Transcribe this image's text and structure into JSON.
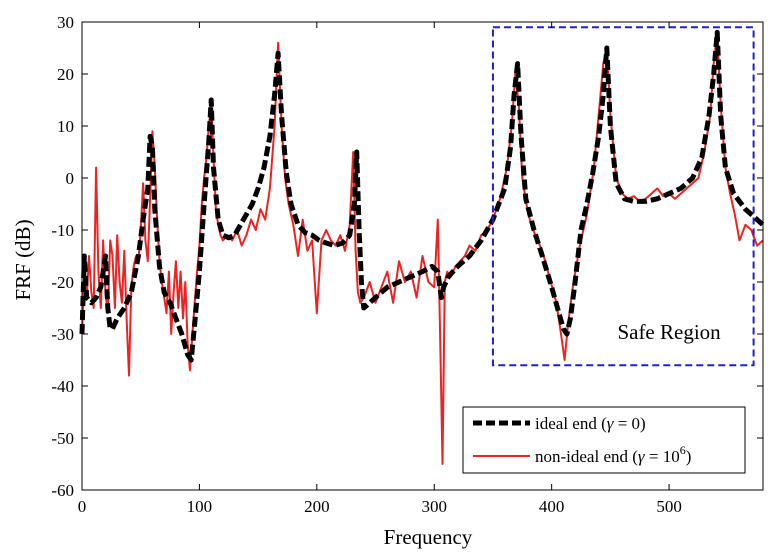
{
  "chart_data": {
    "type": "line",
    "title": "",
    "xlabel": "Frequency",
    "ylabel": "FRF (dB)",
    "xlim": [
      0,
      580
    ],
    "ylim": [
      -60,
      30
    ],
    "xticks": [
      0,
      100,
      200,
      300,
      400,
      500
    ],
    "yticks": [
      -60,
      -50,
      -40,
      -30,
      -20,
      -10,
      0,
      10,
      20,
      30
    ],
    "grid": false,
    "legend_position": "bottom-right",
    "annotations": [
      {
        "text": "Safe Region",
        "x": 500,
        "y": -31
      }
    ],
    "safe_region": {
      "x": [
        350,
        572
      ],
      "y": [
        -36,
        29
      ],
      "color": "#2020d0",
      "style": "dashed"
    },
    "series": [
      {
        "name": "ideal end (γ = 0)",
        "name_prefix": "ideal end (",
        "name_symbol": "γ",
        "name_suffix": " = 0)",
        "color": "#000000",
        "style": "dashed",
        "x": [
          0,
          2,
          4,
          8,
          12,
          16,
          20,
          22,
          24,
          26,
          30,
          36,
          42,
          48,
          52,
          56,
          58,
          60,
          62,
          66,
          70,
          75,
          80,
          85,
          90,
          93,
          96,
          100,
          104,
          108,
          110,
          112,
          116,
          120,
          125,
          130,
          135,
          140,
          145,
          150,
          155,
          160,
          164,
          167,
          170,
          174,
          178,
          184,
          190,
          196,
          202,
          208,
          215,
          222,
          228,
          232,
          234,
          236,
          238,
          240,
          245,
          250,
          260,
          270,
          280,
          290,
          298,
          303,
          306,
          308,
          312,
          320,
          330,
          340,
          350,
          360,
          365,
          368,
          371,
          374,
          378,
          385,
          392,
          400,
          405,
          410,
          413,
          416,
          420,
          425,
          430,
          435,
          440,
          444,
          447,
          450,
          455,
          462,
          470,
          480,
          490,
          500,
          510,
          520,
          528,
          534,
          538,
          541,
          544,
          548,
          555,
          565,
          575,
          580
        ],
        "y": [
          -30,
          -15,
          -23,
          -24,
          -23,
          -21,
          -15,
          -25,
          -29,
          -29,
          -27,
          -25,
          -22,
          -15,
          -8,
          -2,
          8,
          6,
          -6,
          -17,
          -22,
          -24,
          -27,
          -30,
          -34,
          -35,
          -28,
          -18,
          -5,
          7,
          15,
          2,
          -8,
          -11,
          -11.5,
          -11,
          -9,
          -7,
          -5,
          -2,
          2,
          8,
          16,
          24,
          12,
          1,
          -5,
          -9,
          -10.5,
          -11,
          -12,
          -12.5,
          -13,
          -12.5,
          -11,
          -5,
          5,
          -10,
          -20,
          -25,
          -24,
          -23,
          -21,
          -20,
          -19,
          -18,
          -17,
          -18,
          -23,
          -21,
          -19,
          -17,
          -15,
          -12,
          -8,
          -2,
          6,
          16,
          22,
          8,
          -4,
          -10,
          -15,
          -21,
          -25,
          -29,
          -30,
          -27,
          -20,
          -10,
          -5,
          1,
          8,
          16,
          25,
          10,
          -1,
          -4,
          -4.5,
          -4.5,
          -4,
          -3,
          -2,
          0,
          4,
          12,
          20,
          28,
          12,
          2,
          -3,
          -6,
          -8,
          -9
        ]
      },
      {
        "name": "non-ideal end (γ = 10⁶)",
        "name_prefix": "non-ideal end (",
        "name_symbol": "γ",
        "name_mid": " = 10",
        "name_sup": "6",
        "name_suffix": ")",
        "color": "#ee2222",
        "style": "solid",
        "x": [
          0,
          2,
          4,
          6,
          8,
          10,
          12,
          14,
          16,
          18,
          20,
          22,
          24,
          26,
          28,
          30,
          32,
          34,
          36,
          38,
          40,
          42,
          44,
          46,
          48,
          50,
          52,
          54,
          56,
          58,
          60,
          62,
          64,
          66,
          68,
          70,
          72,
          74,
          76,
          78,
          80,
          82,
          84,
          86,
          88,
          90,
          92,
          94,
          96,
          98,
          100,
          102,
          104,
          106,
          108,
          110,
          112,
          114,
          116,
          118,
          120,
          124,
          128,
          132,
          136,
          140,
          144,
          148,
          152,
          156,
          160,
          164,
          167,
          170,
          173,
          176,
          180,
          184,
          188,
          192,
          196,
          200,
          204,
          208,
          212,
          216,
          220,
          224,
          228,
          231,
          233,
          235,
          237,
          240,
          245,
          250,
          255,
          260,
          265,
          270,
          275,
          280,
          285,
          290,
          295,
          300,
          303,
          305,
          307,
          309,
          311,
          314,
          318,
          322,
          326,
          330,
          335,
          340,
          345,
          350,
          356,
          362,
          366,
          369,
          372,
          375,
          380,
          386,
          392,
          398,
          404,
          408,
          411,
          414,
          418,
          424,
          430,
          436,
          440,
          444,
          447,
          450,
          455,
          460,
          465,
          470,
          475,
          480,
          485,
          490,
          495,
          500,
          505,
          510,
          515,
          520,
          525,
          530,
          535,
          538,
          541,
          544,
          548,
          552,
          556,
          560,
          565,
          570,
          575,
          580
        ],
        "y": [
          -30,
          -18,
          -23,
          -15,
          -22,
          -25,
          2,
          -18,
          -25,
          -12,
          -22,
          -26,
          -12,
          -15,
          -25,
          -11,
          -20,
          -24,
          -14,
          -27,
          -38,
          -21,
          -17,
          -15,
          -16,
          -10,
          -1,
          -12,
          -16,
          -4,
          9,
          2,
          -8,
          -16,
          -20,
          -23,
          -26,
          -18,
          -30,
          -22,
          -16,
          -25,
          -18,
          -27,
          -20,
          -32,
          -37,
          -30,
          -24,
          -18,
          -13,
          -5,
          0,
          4,
          10,
          14,
          4,
          -6,
          -9,
          -11,
          -12,
          -11,
          -12,
          -10,
          -13,
          -11,
          -8,
          -10,
          -6,
          -8,
          -2,
          10,
          26,
          10,
          0,
          -5,
          -9,
          -15,
          -8,
          -14,
          -12,
          -26,
          -12,
          -10,
          -12,
          -13,
          -11,
          -14,
          -9,
          5,
          -14,
          -22,
          -24,
          -23,
          -20,
          -24,
          -21,
          -18,
          -24,
          -16,
          -20,
          -18,
          -23,
          -15,
          -20,
          -21,
          -8,
          -30,
          -55,
          -20,
          -18,
          -19,
          -17,
          -16,
          -15,
          -13,
          -14,
          -11,
          -10,
          -8,
          -4,
          2,
          10,
          20,
          14,
          0,
          -7,
          -11,
          -14,
          -19,
          -24,
          -30,
          -35,
          -28,
          -21,
          -13,
          -7,
          2,
          12,
          22,
          25,
          12,
          0,
          -3,
          -4,
          -3.5,
          -4.5,
          -4,
          -3,
          -2,
          -3.5,
          -3,
          -4,
          -3,
          -2,
          -1,
          0,
          5,
          12,
          22,
          28,
          14,
          2,
          -3,
          -7,
          -12,
          -9,
          -10,
          -13,
          -12
        ]
      }
    ]
  }
}
